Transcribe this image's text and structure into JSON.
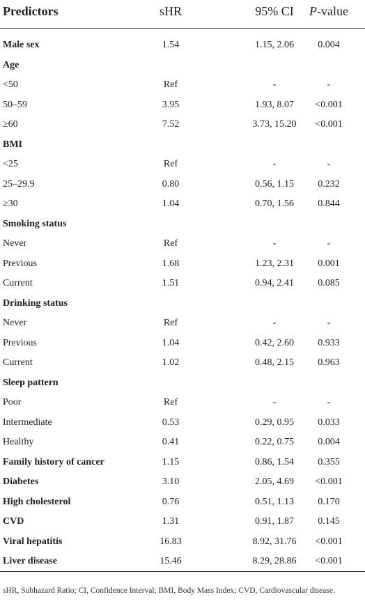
{
  "table": {
    "headers": [
      "Predictors",
      "sHR",
      "95% CI",
      "P-value"
    ],
    "rows": [
      {
        "predictor": "Male sex",
        "bold": true,
        "shr": "1.54",
        "ci": "1.15, 2.06",
        "p": "0.004"
      },
      {
        "predictor": "Age",
        "bold": true,
        "shr": "",
        "ci": "",
        "p": ""
      },
      {
        "predictor": "<50",
        "bold": false,
        "shr": "Ref",
        "ci": "-",
        "p": "-"
      },
      {
        "predictor": "50–59",
        "bold": false,
        "shr": "3.95",
        "ci": "1.93, 8.07",
        "p": "<0.001"
      },
      {
        "predictor": "≥60",
        "bold": false,
        "shr": "7.52",
        "ci": "3.73, 15.20",
        "p": "<0.001"
      },
      {
        "predictor": "BMI",
        "bold": true,
        "shr": "",
        "ci": "",
        "p": ""
      },
      {
        "predictor": "<25",
        "bold": false,
        "shr": "Ref",
        "ci": "-",
        "p": "-"
      },
      {
        "predictor": "25–29.9",
        "bold": false,
        "shr": "0.80",
        "ci": "0.56, 1.15",
        "p": "0.232"
      },
      {
        "predictor": "≥30",
        "bold": false,
        "shr": "1.04",
        "ci": "0.70, 1.56",
        "p": "0.844"
      },
      {
        "predictor": "Smoking status",
        "bold": true,
        "shr": "",
        "ci": "",
        "p": ""
      },
      {
        "predictor": "Never",
        "bold": false,
        "shr": "Ref",
        "ci": "-",
        "p": "-"
      },
      {
        "predictor": "Previous",
        "bold": false,
        "shr": "1.68",
        "ci": "1.23, 2.31",
        "p": "0.001"
      },
      {
        "predictor": "Current",
        "bold": false,
        "shr": "1.51",
        "ci": "0.94, 2.41",
        "p": "0.085"
      },
      {
        "predictor": "Drinking status",
        "bold": true,
        "shr": "",
        "ci": "",
        "p": ""
      },
      {
        "predictor": "Never",
        "bold": false,
        "shr": "Ref",
        "ci": "-",
        "p": "-"
      },
      {
        "predictor": "Previous",
        "bold": false,
        "shr": "1.04",
        "ci": "0.42, 2.60",
        "p": "0.933"
      },
      {
        "predictor": "Current",
        "bold": false,
        "shr": "1.02",
        "ci": "0.48, 2.15",
        "p": "0.963"
      },
      {
        "predictor": "Sleep pattern",
        "bold": true,
        "shr": "",
        "ci": "",
        "p": ""
      },
      {
        "predictor": "Poor",
        "bold": false,
        "shr": "Ref",
        "ci": "-",
        "p": "-"
      },
      {
        "predictor": "Intermediate",
        "bold": false,
        "shr": "0.53",
        "ci": "0.29, 0.95",
        "p": "0.033"
      },
      {
        "predictor": "Healthy",
        "bold": false,
        "shr": "0.41",
        "ci": "0.22, 0.75",
        "p": "0.004"
      },
      {
        "predictor": "Family history of cancer",
        "bold": true,
        "shr": "1.15",
        "ci": "0.86, 1.54",
        "p": "0.355"
      },
      {
        "predictor": "Diabetes",
        "bold": true,
        "shr": "3.10",
        "ci": "2.05, 4.69",
        "p": "<0.001"
      },
      {
        "predictor": "High cholesterol",
        "bold": true,
        "shr": "0.76",
        "ci": "0.51, 1.13",
        "p": "0.170"
      },
      {
        "predictor": "CVD",
        "bold": true,
        "shr": "1.31",
        "ci": "0.91, 1.87",
        "p": "0.145"
      },
      {
        "predictor": "Viral hepatitis",
        "bold": true,
        "shr": "16.83",
        "ci": "8.92, 31.76",
        "p": "<0.001"
      },
      {
        "predictor": "Liver disease",
        "bold": true,
        "shr": "15.46",
        "ci": "8.29, 28.86",
        "p": "<0.001"
      }
    ]
  },
  "footnote": "sHR, Subhazard Ratio; CI, Confidence Interval; BMI, Body Mass Index; CVD, Cardiovascular disease."
}
